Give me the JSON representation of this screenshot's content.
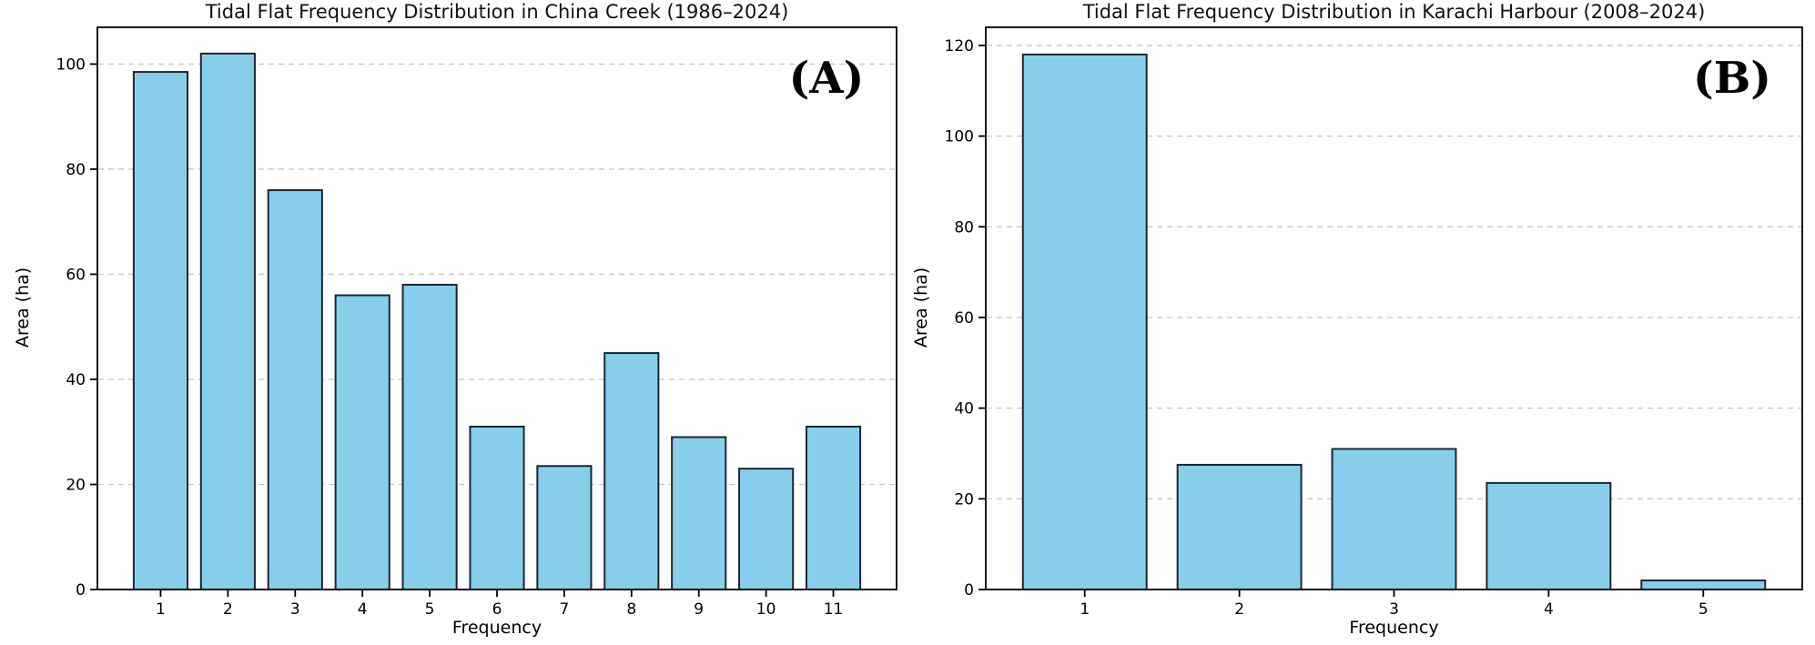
{
  "figure": {
    "background": "#ffffff"
  },
  "chart_data": [
    {
      "type": "bar",
      "panel_label": "(A)",
      "title": "Tidal Flat Frequency Distribution in China Creek (1986–2024)",
      "xlabel": "Frequency",
      "ylabel": "Area (ha)",
      "categories": [
        "1",
        "2",
        "3",
        "4",
        "5",
        "6",
        "7",
        "8",
        "9",
        "10",
        "11"
      ],
      "values": [
        98.5,
        102,
        76,
        56,
        58,
        31,
        23.5,
        45,
        29,
        23,
        31
      ],
      "ylim": [
        0,
        107
      ],
      "yticks": [
        0,
        20,
        40,
        60,
        80,
        100
      ],
      "xlim": [
        0.06,
        11.94
      ],
      "bar_width": 0.8,
      "grid": "horizontal-dashed",
      "legend": "none",
      "colors": {
        "bar_fill": "#87CEEB",
        "bar_edge": "#1A2633",
        "grid": "#C8C8C8",
        "spine": "#000000",
        "text": "#000000"
      }
    },
    {
      "type": "bar",
      "panel_label": "(B)",
      "title": "Tidal Flat Frequency Distribution in Karachi Harbour (2008–2024)",
      "xlabel": "Frequency",
      "ylabel": "Area (ha)",
      "categories": [
        "1",
        "2",
        "3",
        "4",
        "5"
      ],
      "values": [
        118,
        27.5,
        31,
        23.5,
        2
      ],
      "ylim": [
        0,
        124
      ],
      "yticks": [
        0,
        20,
        40,
        60,
        80,
        100,
        120
      ],
      "xlim": [
        0.36,
        5.64
      ],
      "bar_width": 0.8,
      "grid": "horizontal-dashed",
      "legend": "none",
      "colors": {
        "bar_fill": "#87CEEB",
        "bar_edge": "#1A2633",
        "grid": "#C8C8C8",
        "spine": "#000000",
        "text": "#000000"
      }
    }
  ]
}
